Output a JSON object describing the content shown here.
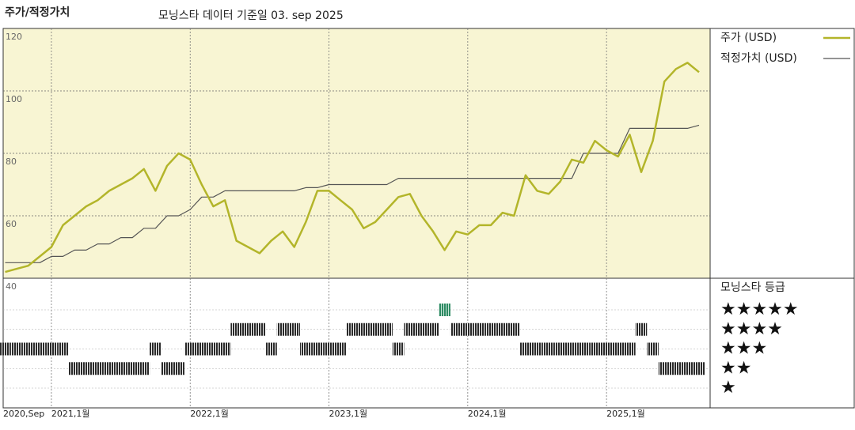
{
  "chart_data": {
    "type": "line",
    "title": "주가/적정가치",
    "subtitle": "모닝스타 데이터 기준일 03. sep 2025",
    "x": [
      "2020-09",
      "2020-10",
      "2020-11",
      "2020-12",
      "2021-01",
      "2021-02",
      "2021-03",
      "2021-04",
      "2021-05",
      "2021-06",
      "2021-07",
      "2021-08",
      "2021-09",
      "2021-10",
      "2021-11",
      "2021-12",
      "2022-01",
      "2022-02",
      "2022-03",
      "2022-04",
      "2022-05",
      "2022-06",
      "2022-07",
      "2022-08",
      "2022-09",
      "2022-10",
      "2022-11",
      "2022-12",
      "2023-01",
      "2023-02",
      "2023-03",
      "2023-04",
      "2023-05",
      "2023-06",
      "2023-07",
      "2023-08",
      "2023-09",
      "2023-10",
      "2023-11",
      "2023-12",
      "2024-01",
      "2024-02",
      "2024-03",
      "2024-04",
      "2024-05",
      "2024-06",
      "2024-07",
      "2024-08",
      "2024-09",
      "2024-10",
      "2024-11",
      "2024-12",
      "2025-01",
      "2025-02",
      "2025-03",
      "2025-04",
      "2025-05",
      "2025-06",
      "2025-07",
      "2025-08",
      "2025-09"
    ],
    "series": [
      {
        "name": "주가 (USD)",
        "color": "#b3b52a",
        "values": [
          42,
          43,
          44,
          47,
          50,
          57,
          60,
          63,
          65,
          68,
          70,
          72,
          75,
          68,
          76,
          80,
          78,
          70,
          63,
          65,
          52,
          50,
          48,
          52,
          55,
          50,
          58,
          68,
          68,
          65,
          62,
          56,
          58,
          62,
          66,
          67,
          60,
          55,
          49,
          55,
          54,
          57,
          57,
          61,
          60,
          73,
          68,
          67,
          71,
          78,
          77,
          84,
          81,
          79,
          86,
          74,
          84,
          103,
          107,
          109,
          106
        ]
      },
      {
        "name": "적정가치 (USD)",
        "color": "#555555",
        "values": [
          45,
          45,
          45,
          45,
          47,
          47,
          49,
          49,
          51,
          51,
          53,
          53,
          56,
          56,
          60,
          60,
          62,
          66,
          66,
          68,
          68,
          68,
          68,
          68,
          68,
          68,
          69,
          69,
          70,
          70,
          70,
          70,
          70,
          70,
          72,
          72,
          72,
          72,
          72,
          72,
          72,
          72,
          72,
          72,
          72,
          72,
          72,
          72,
          72,
          72,
          80,
          80,
          80,
          80,
          88,
          88,
          88,
          88,
          88,
          88,
          89
        ]
      }
    ],
    "ylim": [
      40,
      120
    ],
    "yticks": [
      40,
      60,
      80,
      100,
      120
    ],
    "xticks": [
      {
        "value": "2020-09",
        "label": "2020,Sep"
      },
      {
        "value": "2021-01",
        "label": "2021,1월"
      },
      {
        "value": "2022-01",
        "label": "2022,1월"
      },
      {
        "value": "2023-01",
        "label": "2023,1월"
      },
      {
        "value": "2024-01",
        "label": "2024,1월"
      },
      {
        "value": "2025-01",
        "label": "2025,1월"
      }
    ],
    "grid": true,
    "ratings": {
      "title": "모닝스타 등급",
      "labels": [
        "★★★★★",
        "★★★★",
        "★★★",
        "★★",
        "★"
      ],
      "levels": [
        5,
        4,
        3,
        2,
        1
      ],
      "values": [
        3,
        3,
        3,
        3,
        3,
        3,
        2,
        2,
        2,
        2,
        2,
        2,
        2,
        3,
        2,
        2,
        3,
        3,
        3,
        3,
        4,
        4,
        4,
        3,
        4,
        4,
        3,
        3,
        3,
        3,
        4,
        4,
        4,
        4,
        3,
        4,
        4,
        4,
        5,
        4,
        4,
        4,
        4,
        4,
        4,
        3,
        3,
        3,
        3,
        3,
        3,
        3,
        3,
        3,
        3,
        4,
        3,
        2,
        2,
        2,
        2
      ]
    }
  }
}
